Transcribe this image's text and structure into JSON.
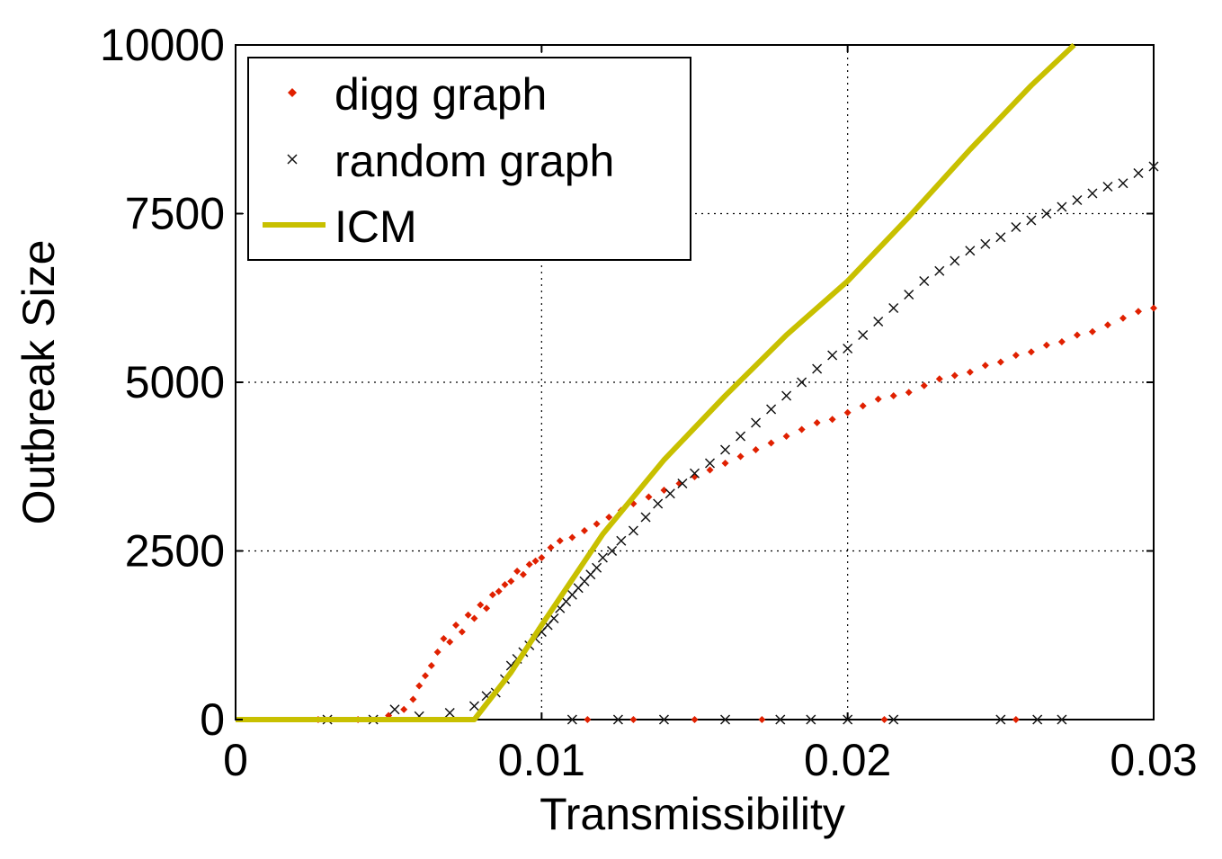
{
  "chart_data": {
    "type": "scatter",
    "title": "",
    "xlabel": "Transmissibility",
    "ylabel": "Outbreak Size",
    "xlim": [
      0,
      0.03
    ],
    "ylim": [
      0,
      10000
    ],
    "x_ticks": [
      0,
      0.01,
      0.02,
      0.03
    ],
    "x_tick_labels": [
      "0",
      "0.01",
      "0.02",
      "0.03"
    ],
    "y_ticks": [
      0,
      2500,
      5000,
      7500,
      10000
    ],
    "y_tick_labels": [
      "0",
      "2500",
      "5000",
      "7500",
      "10000"
    ],
    "grid": true,
    "legend_position": "top-left",
    "series": [
      {
        "name": "digg graph",
        "style": "dot",
        "color": "#e02000",
        "x": [
          0.0027,
          0.004,
          0.005,
          0.0055,
          0.0058,
          0.006,
          0.0062,
          0.0064,
          0.0066,
          0.0068,
          0.007,
          0.0072,
          0.0074,
          0.0076,
          0.0078,
          0.008,
          0.0082,
          0.0084,
          0.0086,
          0.0088,
          0.009,
          0.0092,
          0.0094,
          0.0096,
          0.0098,
          0.01,
          0.0103,
          0.0106,
          0.011,
          0.0114,
          0.0118,
          0.0122,
          0.0126,
          0.013,
          0.0135,
          0.014,
          0.0145,
          0.015,
          0.0155,
          0.016,
          0.0165,
          0.017,
          0.0175,
          0.018,
          0.0185,
          0.019,
          0.0195,
          0.02,
          0.0205,
          0.021,
          0.0215,
          0.022,
          0.0225,
          0.023,
          0.0235,
          0.024,
          0.0245,
          0.025,
          0.0255,
          0.026,
          0.0265,
          0.027,
          0.0275,
          0.028,
          0.0285,
          0.029,
          0.0295,
          0.03,
          0.0115,
          0.013,
          0.015,
          0.0172,
          0.0212,
          0.0255
        ],
        "y": [
          0,
          0,
          60,
          150,
          300,
          500,
          650,
          800,
          1000,
          1200,
          1150,
          1400,
          1300,
          1550,
          1500,
          1700,
          1650,
          1850,
          1900,
          2000,
          2050,
          2200,
          2150,
          2300,
          2350,
          2400,
          2550,
          2650,
          2700,
          2800,
          2900,
          3000,
          3100,
          3200,
          3300,
          3400,
          3500,
          3600,
          3700,
          3800,
          3900,
          4000,
          4100,
          4200,
          4300,
          4400,
          4450,
          4550,
          4650,
          4750,
          4800,
          4850,
          4950,
          5050,
          5100,
          5150,
          5250,
          5300,
          5400,
          5450,
          5550,
          5600,
          5700,
          5750,
          5850,
          5950,
          6050,
          6100,
          0,
          0,
          0,
          0,
          0,
          0
        ]
      },
      {
        "name": "random graph",
        "style": "x",
        "color": "#111111",
        "x": [
          0.003,
          0.0045,
          0.0052,
          0.006,
          0.007,
          0.0078,
          0.0082,
          0.0085,
          0.0088,
          0.009,
          0.0092,
          0.0094,
          0.0096,
          0.0098,
          0.01,
          0.0102,
          0.0104,
          0.0106,
          0.0108,
          0.011,
          0.0112,
          0.0114,
          0.0116,
          0.0118,
          0.012,
          0.0123,
          0.0126,
          0.013,
          0.0134,
          0.0138,
          0.0142,
          0.0146,
          0.015,
          0.0155,
          0.016,
          0.0165,
          0.017,
          0.0175,
          0.018,
          0.0185,
          0.019,
          0.0195,
          0.02,
          0.0205,
          0.021,
          0.0215,
          0.022,
          0.0225,
          0.023,
          0.0235,
          0.024,
          0.0245,
          0.025,
          0.0255,
          0.026,
          0.0265,
          0.027,
          0.0275,
          0.028,
          0.0285,
          0.029,
          0.0295,
          0.03,
          0.011,
          0.0125,
          0.014,
          0.016,
          0.0178,
          0.0188,
          0.02,
          0.0215,
          0.025,
          0.0262,
          0.027
        ],
        "y": [
          0,
          0,
          150,
          50,
          100,
          200,
          350,
          400,
          600,
          800,
          900,
          1000,
          1100,
          1200,
          1300,
          1400,
          1500,
          1650,
          1750,
          1850,
          1950,
          2050,
          2150,
          2250,
          2400,
          2500,
          2650,
          2800,
          3000,
          3200,
          3350,
          3500,
          3650,
          3800,
          4000,
          4200,
          4400,
          4600,
          4800,
          5000,
          5200,
          5400,
          5500,
          5700,
          5900,
          6100,
          6300,
          6500,
          6650,
          6800,
          6950,
          7050,
          7150,
          7300,
          7400,
          7500,
          7600,
          7700,
          7800,
          7900,
          7950,
          8100,
          8200,
          0,
          0,
          0,
          0,
          0,
          0,
          0,
          0,
          0,
          0,
          0
        ]
      },
      {
        "name": "ICM",
        "style": "line",
        "color": "#c8c000",
        "x": [
          0,
          0.0078,
          0.009,
          0.01,
          0.012,
          0.014,
          0.016,
          0.018,
          0.02,
          0.022,
          0.024,
          0.026,
          0.0274
        ],
        "y": [
          0,
          0,
          700,
          1400,
          2750,
          3850,
          4800,
          5700,
          6500,
          7450,
          8450,
          9400,
          10000
        ]
      }
    ]
  }
}
